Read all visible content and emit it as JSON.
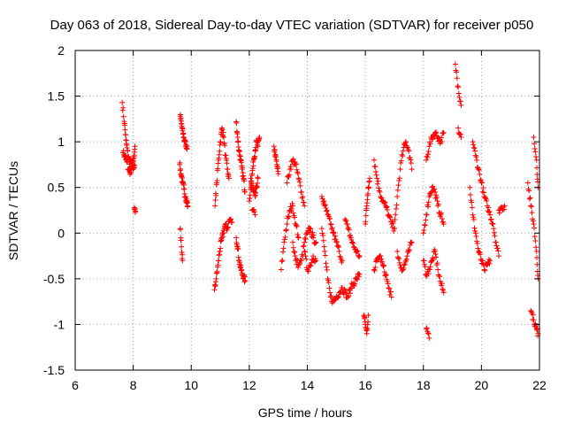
{
  "chart_data": {
    "type": "scatter",
    "title": "Day 063 of 2018, Sidereal Day-to-day VTEC variation (SDTVAR) for receiver p050",
    "xlabel": "GPS time / hours",
    "ylabel": "SDTVAR / TECUs",
    "xlim": [
      6,
      22
    ],
    "ylim": [
      -1.5,
      2
    ],
    "xticks": [
      "6",
      "8",
      "10",
      "12",
      "14",
      "16",
      "18",
      "20",
      "22"
    ],
    "yticks": [
      "-1.5",
      "-1",
      "-0.5",
      "0",
      "0.5",
      "1",
      "1.5",
      "2"
    ],
    "grid": true,
    "marker": "plus",
    "color": "#ff0000",
    "segments": [
      {
        "x": [
          7.62,
          7.7,
          7.75,
          7.8,
          7.85,
          7.9,
          7.95,
          8.0,
          8.05
        ],
        "y": [
          1.43,
          1.2,
          1.02,
          0.9,
          0.8,
          0.78,
          0.72,
          0.7,
          0.74
        ]
      },
      {
        "x": [
          7.65,
          7.72,
          7.78,
          7.84,
          7.9,
          7.96,
          8.02,
          8.06
        ],
        "y": [
          0.88,
          0.85,
          0.78,
          0.7,
          0.66,
          0.75,
          0.82,
          0.95
        ]
      },
      {
        "x": [
          8.04,
          8.08
        ],
        "y": [
          0.28,
          0.24
        ]
      },
      {
        "x": [
          9.62,
          9.66,
          9.7,
          9.74,
          9.78,
          9.82,
          9.86
        ],
        "y": [
          1.28,
          1.2,
          1.12,
          1.05,
          1.0,
          0.97,
          0.95
        ]
      },
      {
        "x": [
          9.6,
          9.65,
          9.7,
          9.75,
          9.8,
          9.85,
          9.88
        ],
        "y": [
          0.75,
          0.65,
          0.55,
          0.48,
          0.4,
          0.35,
          0.3
        ]
      },
      {
        "x": [
          9.62,
          9.66,
          9.7
        ],
        "y": [
          0.05,
          -0.15,
          -0.3
        ]
      },
      {
        "x": [
          10.82,
          10.88,
          10.94,
          11.0,
          11.06,
          11.12,
          11.18,
          11.24,
          11.3
        ],
        "y": [
          0.3,
          0.55,
          0.8,
          1.0,
          1.15,
          1.05,
          0.85,
          0.7,
          0.6
        ]
      },
      {
        "x": [
          10.8,
          10.86,
          10.92,
          10.98,
          11.04,
          11.1,
          11.16,
          11.24,
          11.32,
          11.4
        ],
        "y": [
          -0.62,
          -0.5,
          -0.35,
          -0.2,
          -0.08,
          0.0,
          0.08,
          0.05,
          0.15,
          0.12
        ]
      },
      {
        "x": [
          11.55,
          11.6,
          11.65,
          11.7,
          11.75,
          11.8,
          11.85
        ],
        "y": [
          1.22,
          1.05,
          0.9,
          0.8,
          0.7,
          0.6,
          0.45
        ]
      },
      {
        "x": [
          11.55,
          11.6,
          11.65,
          11.7,
          11.75,
          11.8,
          11.86
        ],
        "y": [
          -0.05,
          -0.15,
          -0.3,
          -0.38,
          -0.44,
          -0.48,
          -0.52
        ]
      },
      {
        "x": [
          12.0,
          12.05,
          12.1,
          12.15,
          12.2,
          12.25,
          12.3,
          12.35
        ],
        "y": [
          0.35,
          0.5,
          0.65,
          0.8,
          0.9,
          1.0,
          0.95,
          1.05
        ]
      },
      {
        "x": [
          12.05,
          12.1,
          12.15,
          12.2,
          12.25,
          12.3
        ],
        "y": [
          0.6,
          0.5,
          0.45,
          0.4,
          0.5,
          0.6
        ]
      },
      {
        "x": [
          12.1,
          12.2
        ],
        "y": [
          0.25,
          0.2
        ]
      },
      {
        "x": [
          12.85,
          12.9,
          12.95,
          13.0
        ],
        "y": [
          0.95,
          0.85,
          0.75,
          0.65
        ]
      },
      {
        "x": [
          13.1,
          13.2,
          13.3,
          13.4,
          13.5,
          13.6,
          13.7
        ],
        "y": [
          -0.4,
          -0.1,
          0.1,
          0.25,
          0.3,
          0.1,
          -0.05
        ]
      },
      {
        "x": [
          13.3,
          13.4,
          13.5,
          13.6,
          13.7,
          13.8,
          13.9
        ],
        "y": [
          0.55,
          0.7,
          0.8,
          0.75,
          0.6,
          0.45,
          0.3
        ]
      },
      {
        "x": [
          13.5,
          13.6,
          13.7,
          13.8,
          13.9,
          14.0,
          14.1,
          14.2,
          14.3
        ],
        "y": [
          -0.1,
          -0.3,
          -0.35,
          -0.3,
          -0.1,
          0.0,
          0.05,
          -0.05,
          -0.1
        ]
      },
      {
        "x": [
          13.9,
          14.0,
          14.1,
          14.2,
          14.3
        ],
        "y": [
          -0.2,
          -0.4,
          -0.35,
          -0.25,
          -0.3
        ]
      },
      {
        "x": [
          14.5,
          14.6,
          14.7,
          14.8,
          14.9,
          15.0,
          15.1,
          15.2,
          15.3,
          15.4,
          15.5,
          15.6,
          15.7,
          15.8
        ],
        "y": [
          0.05,
          -0.2,
          -0.5,
          -0.7,
          -0.75,
          -0.7,
          -0.65,
          -0.6,
          -0.65,
          -0.7,
          -0.6,
          -0.55,
          -0.5,
          -0.45
        ]
      },
      {
        "x": [
          14.5,
          14.6,
          14.7,
          14.8,
          14.9,
          15.0,
          15.1,
          15.2
        ],
        "y": [
          0.4,
          0.3,
          0.2,
          0.1,
          0.0,
          -0.1,
          -0.2,
          -0.3
        ]
      },
      {
        "x": [
          15.3,
          15.4,
          15.5,
          15.6,
          15.7,
          15.8
        ],
        "y": [
          0.15,
          0.05,
          -0.05,
          -0.15,
          -0.2,
          -0.25
        ]
      },
      {
        "x": [
          15.95,
          16.0,
          16.05,
          16.1
        ],
        "y": [
          -0.9,
          -1.0,
          -1.1,
          -0.9
        ]
      },
      {
        "x": [
          16.0,
          16.05,
          16.1,
          16.15
        ],
        "y": [
          0.1,
          0.3,
          0.5,
          0.6
        ]
      },
      {
        "x": [
          16.3,
          16.4,
          16.5,
          16.6,
          16.7,
          16.8,
          16.9,
          17.0
        ],
        "y": [
          0.8,
          0.6,
          0.45,
          0.35,
          0.3,
          0.2,
          0.1,
          0.05
        ]
      },
      {
        "x": [
          16.3,
          16.4,
          16.5,
          16.6,
          16.7,
          16.8,
          16.9
        ],
        "y": [
          -0.4,
          -0.3,
          -0.25,
          -0.35,
          -0.45,
          -0.6,
          -0.7
        ]
      },
      {
        "x": [
          17.0,
          17.1,
          17.2,
          17.3,
          17.4,
          17.5,
          17.6
        ],
        "y": [
          0.05,
          0.4,
          0.7,
          0.9,
          1.0,
          0.9,
          0.7
        ]
      },
      {
        "x": [
          17.1,
          17.2,
          17.3,
          17.4,
          17.5,
          17.6
        ],
        "y": [
          -0.2,
          -0.35,
          -0.4,
          -0.3,
          -0.2,
          -0.1
        ]
      },
      {
        "x": [
          18.0,
          18.1,
          18.2,
          18.3,
          18.4,
          18.5,
          18.6,
          18.7
        ],
        "y": [
          0.0,
          0.2,
          0.4,
          0.5,
          0.45,
          0.3,
          0.2,
          0.1
        ]
      },
      {
        "x": [
          18.0,
          18.1,
          18.2,
          18.3,
          18.4,
          18.5,
          18.6,
          18.7
        ],
        "y": [
          -0.3,
          -0.45,
          -0.4,
          -0.3,
          -0.2,
          -0.4,
          -0.55,
          -0.65
        ]
      },
      {
        "x": [
          18.1,
          18.2,
          18.3,
          18.4,
          18.5,
          18.6,
          18.7
        ],
        "y": [
          0.8,
          0.95,
          1.05,
          1.1,
          1.05,
          1.0,
          1.1
        ]
      },
      {
        "x": [
          18.1,
          18.2
        ],
        "y": [
          -1.05,
          -1.15
        ]
      },
      {
        "x": [
          19.1,
          19.2,
          19.3
        ],
        "y": [
          1.85,
          1.6,
          1.4
        ]
      },
      {
        "x": [
          19.2,
          19.3
        ],
        "y": [
          1.15,
          1.05
        ]
      },
      {
        "x": [
          19.6,
          19.7,
          19.8,
          19.9,
          20.0,
          20.1,
          20.2,
          20.3
        ],
        "y": [
          0.5,
          0.2,
          0.0,
          -0.2,
          -0.3,
          -0.4,
          -0.35,
          -0.3
        ]
      },
      {
        "x": [
          19.7,
          19.8,
          19.9,
          20.0,
          20.1,
          20.2,
          20.3,
          20.4,
          20.5,
          20.6
        ],
        "y": [
          1.0,
          0.85,
          0.7,
          0.55,
          0.4,
          0.3,
          0.2,
          0.1,
          -0.1,
          -0.25
        ]
      },
      {
        "x": [
          20.6,
          20.7,
          20.8
        ],
        "y": [
          0.25,
          0.28,
          0.3
        ]
      },
      {
        "x": [
          21.6,
          21.7,
          21.8,
          21.9,
          21.95
        ],
        "y": [
          0.55,
          0.3,
          0.1,
          -0.2,
          -0.5
        ]
      },
      {
        "x": [
          21.7,
          21.8,
          21.9,
          21.95
        ],
        "y": [
          -0.85,
          -0.95,
          -1.05,
          -1.1
        ]
      },
      {
        "x": [
          21.8,
          21.9,
          21.95
        ],
        "y": [
          1.05,
          0.8,
          0.5
        ]
      }
    ]
  }
}
